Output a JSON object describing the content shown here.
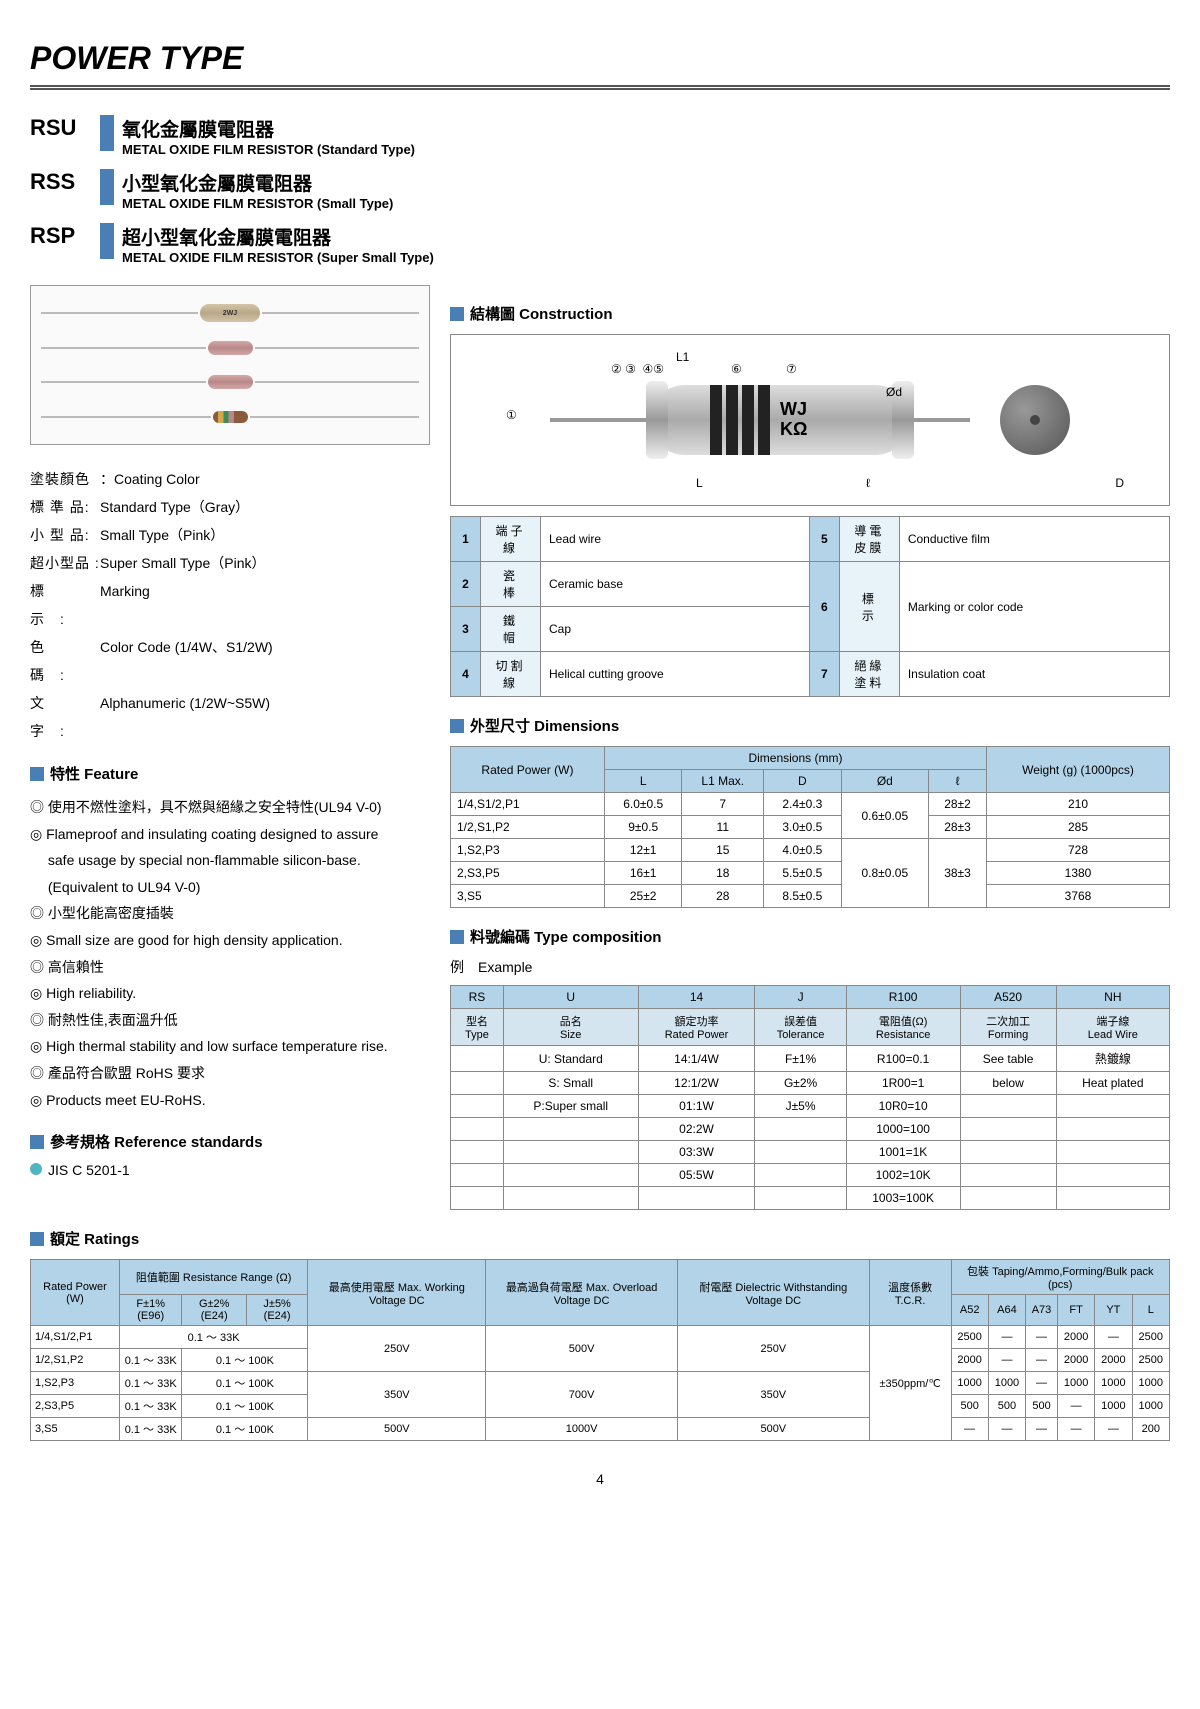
{
  "title": "POWER TYPE",
  "products": [
    {
      "code": "RSU",
      "cn": "氧化金屬膜電阻器",
      "en": "METAL OXIDE FILM RESISTOR (Standard Type)"
    },
    {
      "code": "RSS",
      "cn": "小型氧化金屬膜電阻器",
      "en": "METAL OXIDE FILM RESISTOR (Small Type)"
    },
    {
      "code": "RSP",
      "cn": "超小型氧化金屬膜電阻器",
      "en": "METAL OXIDE FILM RESISTOR (Super Small Type)"
    }
  ],
  "coating_labels": {
    "coating": "塗裝顏色",
    "coating_en": "Coating Color",
    "std": "標 準 品:",
    "std_en": "Standard Type（Gray）",
    "small": "小 型 品:",
    "small_en": "Small Type（Pink）",
    "super": "超小型品 :",
    "super_en": "Super Small Type（Pink）",
    "marking": "標　　示　:",
    "marking_en": "Marking",
    "color": "色　　碼　:",
    "color_en": "Color Code (1/4W、S1/2W)",
    "alpha": "文　　字　:",
    "alpha_en": "Alphanumeric (1/2W~S5W)"
  },
  "sections": {
    "construction": "結構圖 Construction",
    "feature": "特性 Feature",
    "dimensions": "外型尺寸 Dimensions",
    "type_comp": "料號編碼 Type composition",
    "ref_std": "參考規格 Reference standards",
    "ratings": "額定 Ratings"
  },
  "features": [
    "◎ 使用不燃性塗料，具不燃與絕緣之安全特性(UL94 V-0)",
    "◎ Flameproof and insulating coating designed to assure",
    "　 safe usage by special non-flammable silicon-base.",
    "　 (Equivalent to UL94 V-0)",
    "◎ 小型化能高密度插裝",
    "◎ Small size are good for high density application.",
    "◎ 高信賴性",
    "◎ High reliability.",
    "◎ 耐熱性佳,表面溫升低",
    "◎ High thermal stability and low surface temperature rise.",
    "◎ 產品符合歐盟 RoHS 要求",
    "◎ Products meet  EU-RoHS."
  ],
  "ref_std_item": "JIS C 5201-1",
  "construction_parts": [
    {
      "n": "1",
      "cn": "端子線",
      "en": "Lead wire"
    },
    {
      "n": "2",
      "cn": "瓷　棒",
      "en": "Ceramic base"
    },
    {
      "n": "3",
      "cn": "鐵　帽",
      "en": "Cap"
    },
    {
      "n": "4",
      "cn": "切割線",
      "en": "Helical cutting  groove"
    },
    {
      "n": "5",
      "cn": "導電皮膜",
      "en": "Conductive film"
    },
    {
      "n": "6",
      "cn": "標　示",
      "en": "Marking or color code"
    },
    {
      "n": "7",
      "cn": "絕緣塗料",
      "en": "Insulation coat"
    }
  ],
  "dim_headers": {
    "power": "Rated Power (W)",
    "dims": "Dimensions (mm)",
    "weight": "Weight (g) (1000pcs)",
    "L": "L",
    "L1": "L1 Max.",
    "D": "D",
    "Od": "Ød",
    "l": "ℓ"
  },
  "dim_rows": [
    {
      "p": "1/4,S1/2,P1",
      "L": "6.0±0.5",
      "L1": "7",
      "D": "2.4±0.3",
      "Od": "0.6±0.05",
      "l": "28±2",
      "w": "210"
    },
    {
      "p": "1/2,S1,P2",
      "L": "9±0.5",
      "L1": "11",
      "D": "3.0±0.5",
      "Od": "",
      "l": "28±3",
      "w": "285"
    },
    {
      "p": "1,S2,P3",
      "L": "12±1",
      "L1": "15",
      "D": "4.0±0.5",
      "Od": "0.8±0.05",
      "l": "38±3",
      "w": "728"
    },
    {
      "p": "2,S3,P5",
      "L": "16±1",
      "L1": "18",
      "D": "5.5±0.5",
      "Od": "",
      "l": "",
      "w": "1380"
    },
    {
      "p": "3,S5",
      "L": "25±2",
      "L1": "28",
      "D": "8.5±0.5",
      "Od": "",
      "l": "",
      "w": "3768"
    }
  ],
  "type_example": "例　Example",
  "type_comp": {
    "codes": [
      "RS",
      "U",
      "14",
      "J",
      "R100",
      "A520",
      "NH"
    ],
    "labels_cn": [
      "型名",
      "品名",
      "額定功率",
      "誤差值",
      "電阻值(Ω)",
      "二次加工",
      "端子線"
    ],
    "labels_en": [
      "Type",
      "Size",
      "Rated Power",
      "Tolerance",
      "Resistance",
      "Forming",
      "Lead Wire"
    ],
    "rows": [
      [
        "",
        "U: Standard",
        "14:1/4W",
        "F±1%",
        "R100=0.1",
        "See table",
        "熱鍍線"
      ],
      [
        "",
        "S: Small",
        "12:1/2W",
        "G±2%",
        "1R00=1",
        "below",
        "Heat plated"
      ],
      [
        "",
        "P:Super small",
        "01:1W",
        "J±5%",
        "10R0=10",
        "",
        ""
      ],
      [
        "",
        "",
        "02:2W",
        "",
        "1000=100",
        "",
        ""
      ],
      [
        "",
        "",
        "03:3W",
        "",
        "1001=1K",
        "",
        ""
      ],
      [
        "",
        "",
        "05:5W",
        "",
        "1002=10K",
        "",
        ""
      ],
      [
        "",
        "",
        "",
        "",
        "1003=100K",
        "",
        ""
      ]
    ]
  },
  "ratings_hdr": {
    "power": "Rated Power (W)",
    "range": "阻值範圍 Resistance Range (Ω)",
    "f1": "F±1% (E96)",
    "g2": "G±2% (E24)",
    "j5": "J±5% (E24)",
    "maxv": "最高使用電壓 Max. Working Voltage DC",
    "overv": "最高過負荷電壓 Max.  Overload Voltage DC",
    "diel": "耐電壓 Dielectric Withstanding Voltage DC",
    "tcr": "溫度係數 T.C.R.",
    "pack": "包裝 Taping/Ammo,Forming/Bulk pack (pcs)",
    "a52": "A52",
    "a64": "A64",
    "a73": "A73",
    "ft": "FT",
    "yt": "YT",
    "lp": "L"
  },
  "ratings_rows": [
    {
      "p": "1/4,S1/2,P1",
      "f": "0.1 ～ 33K",
      "g": "",
      "j": "",
      "mv": "250V",
      "ov": "500V",
      "dv": "250V",
      "a52": "2500",
      "a64": "—",
      "a73": "—",
      "ft": "2000",
      "yt": "—",
      "l": "2500"
    },
    {
      "p": "1/2,S1,P2",
      "f": "0.1 ～ 33K",
      "g": "0.1 ～ 100K",
      "j": "",
      "mv": "",
      "ov": "",
      "dv": "",
      "a52": "2000",
      "a64": "—",
      "a73": "—",
      "ft": "2000",
      "yt": "2000",
      "l": "2500"
    },
    {
      "p": "1,S2,P3",
      "f": "0.1 ～ 33K",
      "g": "0.1 ～ 100K",
      "j": "",
      "mv": "350V",
      "ov": "700V",
      "dv": "350V",
      "a52": "1000",
      "a64": "1000",
      "a73": "—",
      "ft": "1000",
      "yt": "1000",
      "l": "1000"
    },
    {
      "p": "2,S3,P5",
      "f": "0.1 ～ 33K",
      "g": "0.1 ～ 100K",
      "j": "",
      "mv": "",
      "ov": "",
      "dv": "",
      "a52": "500",
      "a64": "500",
      "a73": "500",
      "ft": "—",
      "yt": "1000",
      "l": "1000"
    },
    {
      "p": "3,S5",
      "f": "0.1 ～ 33K",
      "g": "0.1 ～ 100K",
      "j": "",
      "mv": "500V",
      "ov": "1000V",
      "dv": "500V",
      "a52": "—",
      "a64": "—",
      "a73": "—",
      "ft": "—",
      "yt": "—",
      "l": "200"
    }
  ],
  "tcr_value": "±350ppm/℃",
  "page_num": "4",
  "diagram_labels": {
    "L": "L",
    "L1": "L1",
    "Od": "Ød",
    "l": "ℓ",
    "D": "D",
    "WJ": "WJ",
    "KO": "KΩ"
  }
}
